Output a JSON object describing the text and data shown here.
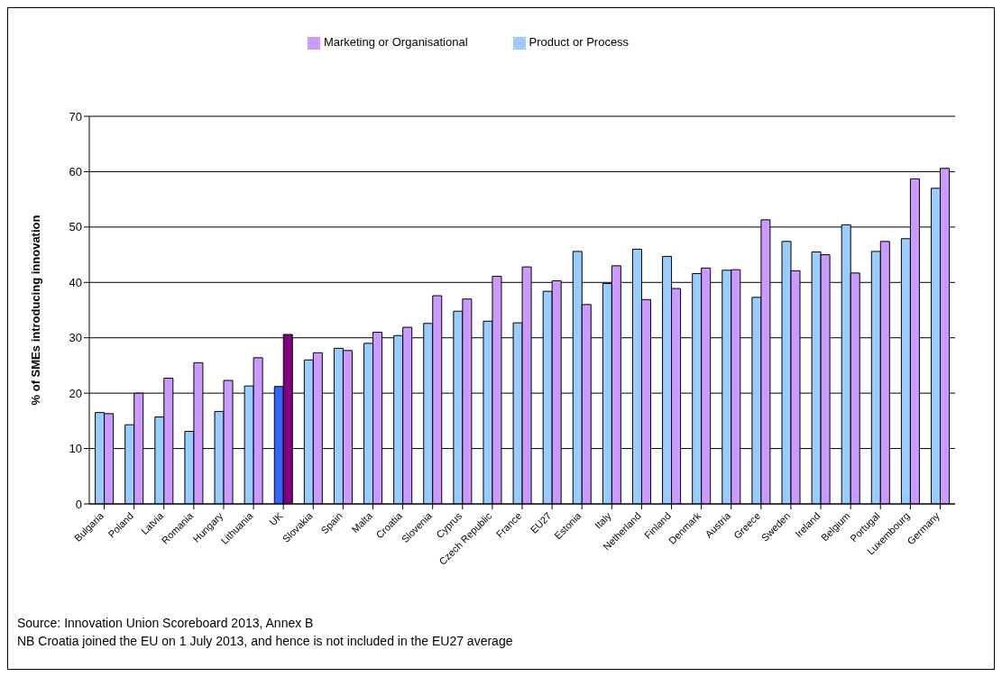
{
  "chart_data": {
    "type": "bar",
    "ylabel": "% of SMEs introducing innovation",
    "categories": [
      "Bulgaria",
      "Poland",
      "Latvia",
      "Romania",
      "Hungary",
      "Lithuania",
      "UK",
      "Slovakia",
      "Spain",
      "Malta",
      "Croatia",
      "Slovenia",
      "Cyprus",
      "Czech Republic",
      "France",
      "EU27",
      "Estonia",
      "Italy",
      "Netherland",
      "Finland",
      "Denmark",
      "Austria",
      "Greece",
      "Sweden",
      "Ireland",
      "Belgium",
      "Portugal",
      "Luxembourg",
      "Germany"
    ],
    "series": [
      {
        "name": "Product or Process",
        "color": "#99ccff",
        "colors": [
          "#99ccff",
          "#99ccff",
          "#99ccff",
          "#99ccff",
          "#99ccff",
          "#99ccff",
          "#3366ff",
          "#99ccff",
          "#99ccff",
          "#99ccff",
          "#99ccff",
          "#99ccff",
          "#99ccff",
          "#99ccff",
          "#99ccff",
          "#99ccff",
          "#99ccff",
          "#99ccff",
          "#99ccff",
          "#99ccff",
          "#99ccff",
          "#99ccff",
          "#99ccff",
          "#99ccff",
          "#99ccff",
          "#99ccff",
          "#99ccff",
          "#99ccff",
          "#99ccff"
        ],
        "values": [
          16.5,
          14.3,
          15.7,
          13.1,
          16.7,
          21.3,
          21.2,
          26,
          28.1,
          29,
          30.4,
          32.6,
          34.8,
          33,
          32.7,
          38.4,
          45.6,
          39.8,
          46,
          44.7,
          41.6,
          42.2,
          37.3,
          47.4,
          45.5,
          50.4,
          45.6,
          47.9,
          57
        ]
      },
      {
        "name": "Marketing or Organisational",
        "color": "#cc99ff",
        "colors": [
          "#cc99ff",
          "#cc99ff",
          "#cc99ff",
          "#cc99ff",
          "#cc99ff",
          "#cc99ff",
          "#800080",
          "#cc99ff",
          "#cc99ff",
          "#cc99ff",
          "#cc99ff",
          "#cc99ff",
          "#cc99ff",
          "#cc99ff",
          "#cc99ff",
          "#cc99ff",
          "#cc99ff",
          "#cc99ff",
          "#cc99ff",
          "#cc99ff",
          "#cc99ff",
          "#cc99ff",
          "#cc99ff",
          "#cc99ff",
          "#cc99ff",
          "#cc99ff",
          "#cc99ff",
          "#cc99ff",
          "#cc99ff"
        ],
        "values": [
          16.3,
          20,
          22.7,
          25.5,
          22.3,
          26.4,
          30.6,
          27.3,
          27.7,
          31,
          31.9,
          37.6,
          37,
          41.1,
          42.8,
          40.3,
          36,
          43,
          36.9,
          38.9,
          42.6,
          42.3,
          51.3,
          42.1,
          45,
          41.7,
          47.4,
          58.7,
          60.6
        ]
      }
    ],
    "ylim": [
      0,
      70
    ],
    "yticks": [
      0,
      10,
      20,
      30,
      40,
      50,
      60,
      70
    ],
    "grid": "y",
    "legend": "top",
    "annotations": [
      "Source: Innovation Union Scoreboard 2013, Annex B",
      "NB Croatia joined the EU on 1 July 2013, and hence is not included in the EU27 average"
    ]
  }
}
